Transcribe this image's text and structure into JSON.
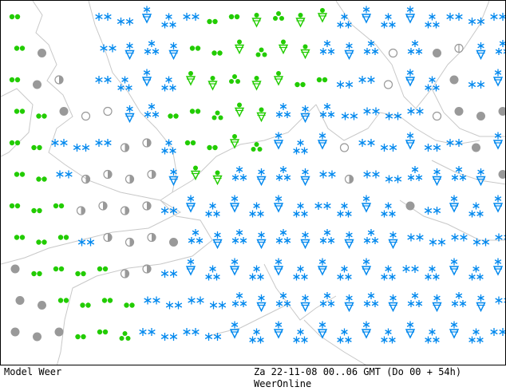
{
  "footer": {
    "left_label": "Model Weer",
    "date_line": "Za 22-11-08 00..06 GMT (Do 00 + 54h)",
    "credit": "WeerOnline"
  },
  "colors": {
    "rain": "#22cc00",
    "snow": "#0088ee",
    "cloud": "#999999",
    "coastline": "#c8c8c8",
    "frame": "#000000",
    "background": "#ffffff"
  },
  "legend_symbols": {
    "r": "rain-drops",
    "R": "rain-shower",
    "s": "snow-stars",
    "S": "snow-shower",
    "g": "overcast-disc",
    "h": "half-cloudy-disc",
    "o": "clear-circle"
  },
  "weather_grid": [
    "r...ssSSsrrRRRRSSSSSsss",
    "rg..sSSSrrRRRRSSSoSghSS",
    "rgi.sSSSRRRRRrrssoSSgsS",
    "rrgooSSrrRRRSSSssssoggg",
    "rrsssiiSrrRRSSSossSssgS",
    "rrsiiiiSRRSSSSsissSSSSg",
    "rrriiiisSSSSSSsSSSgsSSS",
    "rrrsiiigSSSSSSSSSSsssss",
    "grrrriisSSSSSSSSSSsSSSS",
    "ggrrrrssssSSSSSSSSSSSSs",
    "gggrrRssssSSSSSSSSSSSSs"
  ]
}
